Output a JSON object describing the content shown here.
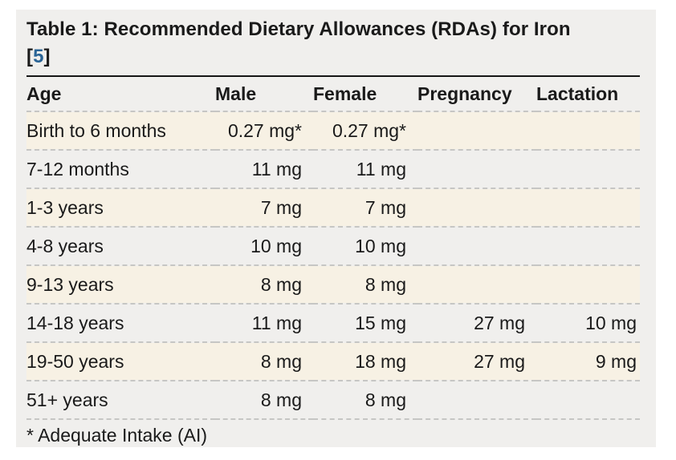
{
  "table": {
    "title": "Table 1: Recommended Dietary Allowances (RDAs) for Iron",
    "citation": {
      "open": "[",
      "number": "5",
      "close": "]"
    },
    "columns": [
      "Age",
      "Male",
      "Female",
      "Pregnancy",
      "Lactation"
    ],
    "rows": [
      [
        "Birth to 6 months",
        "0.27 mg*",
        "0.27 mg*",
        "",
        ""
      ],
      [
        "7-12 months",
        "11 mg",
        "11 mg",
        "",
        ""
      ],
      [
        "1-3 years",
        "7 mg",
        "7 mg",
        "",
        ""
      ],
      [
        "4-8 years",
        "10 mg",
        "10 mg",
        "",
        ""
      ],
      [
        "9-13 years",
        "8 mg",
        "8 mg",
        "",
        ""
      ],
      [
        "14-18 years",
        "11 mg",
        "15 mg",
        "27 mg",
        "10 mg"
      ],
      [
        "19-50 years",
        "8 mg",
        "18 mg",
        "27 mg",
        "9 mg"
      ],
      [
        "51+ years",
        "8 mg",
        "8 mg",
        "",
        ""
      ]
    ],
    "footnote": "* Adequate Intake (AI)"
  },
  "colors": {
    "card_bg": "#f0efed",
    "stripe_bg": "#f7f1e4",
    "dash": "#c6c6c4",
    "rule": "#161616",
    "link": "#2a6496"
  }
}
